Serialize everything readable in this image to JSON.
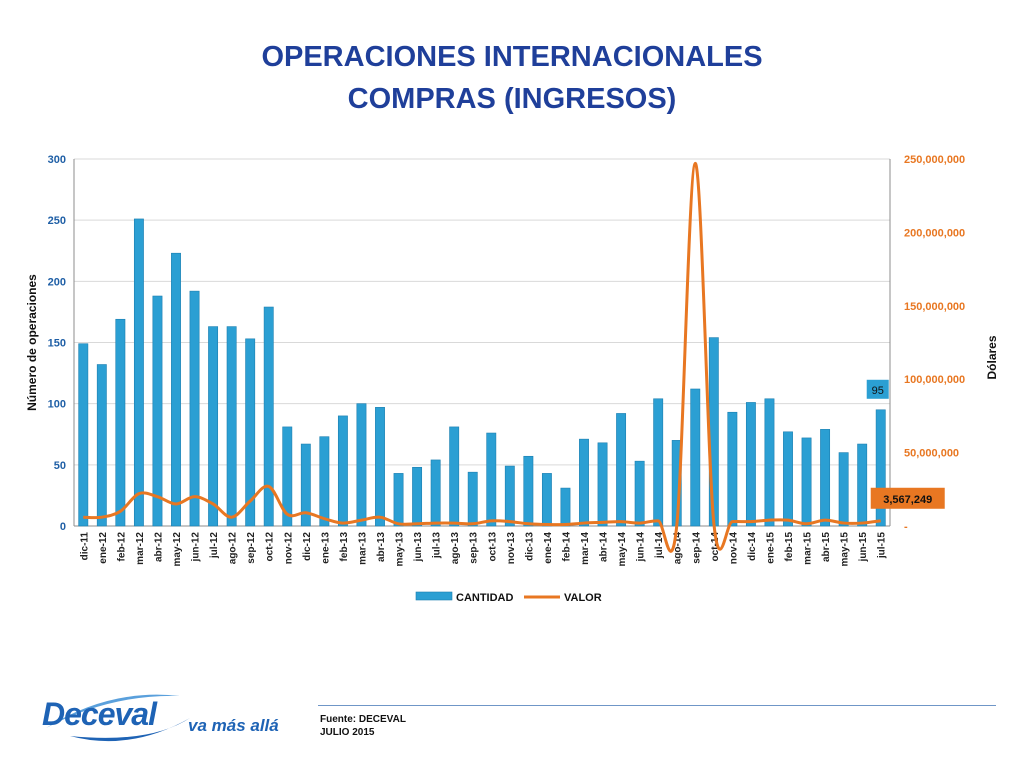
{
  "page": {
    "title_line1": "OPERACIONES INTERNACIONALES",
    "title_line2": "COMPRAS (INGRESOS)",
    "source_line1": "Fuente: DECEVAL",
    "source_line2": "JULIO 2015",
    "logo_brand": "Deceval",
    "logo_tagline": "va más allá"
  },
  "colors": {
    "title": "#1f3f9a",
    "bar": "#2b9fd3",
    "line": "#e87722",
    "left_axis": "#1f5fa6",
    "right_axis": "#e87722"
  },
  "chart_data": {
    "type": "bar",
    "categories": [
      "dic-11",
      "ene-12",
      "feb-12",
      "mar-12",
      "abr-12",
      "may-12",
      "jun-12",
      "jul-12",
      "ago-12",
      "sep-12",
      "oct-12",
      "nov-12",
      "dic-12",
      "ene-13",
      "feb-13",
      "mar-13",
      "abr-13",
      "may-13",
      "jun-13",
      "jul-13",
      "ago-13",
      "sep-13",
      "oct-13",
      "nov-13",
      "dic-13",
      "ene-14",
      "feb-14",
      "mar-14",
      "abr-14",
      "may-14",
      "jun-14",
      "jul-14",
      "ago-14",
      "sep-14",
      "oct-14",
      "nov-14",
      "dic-14",
      "ene-15",
      "feb-15",
      "mar-15",
      "abr-15",
      "may-15",
      "jun-15",
      "jul-15"
    ],
    "series": [
      {
        "name": "CANTIDAD",
        "type": "bar",
        "axis": "left",
        "values": [
          149,
          132,
          169,
          251,
          188,
          223,
          192,
          163,
          163,
          153,
          179,
          81,
          67,
          73,
          90,
          100,
          97,
          43,
          48,
          54,
          81,
          44,
          76,
          49,
          57,
          43,
          31,
          71,
          68,
          92,
          53,
          104,
          70,
          112,
          154,
          93,
          101,
          104,
          77,
          72,
          79,
          60,
          67,
          95
        ]
      },
      {
        "name": "VALOR",
        "type": "line",
        "axis": "right",
        "values": [
          6000000,
          6000000,
          10000000,
          22000000,
          20000000,
          15000000,
          20000000,
          15000000,
          6000000,
          17000000,
          27000000,
          8000000,
          9000000,
          5000000,
          2000000,
          4000000,
          6000000,
          1500000,
          1500000,
          2000000,
          2000000,
          1500000,
          3500000,
          3000000,
          1500000,
          1000000,
          1000000,
          2000000,
          2500000,
          3000000,
          2000000,
          3500000,
          0,
          247000000,
          2000000,
          3000000,
          3000000,
          4000000,
          4000000,
          1500000,
          4000000,
          2000000,
          2000000,
          3567249
        ]
      }
    ],
    "y_left": {
      "label": "Número de operaciones",
      "min": 0,
      "max": 300,
      "ticks": [
        "0",
        "50",
        "100",
        "150",
        "200",
        "250",
        "300"
      ]
    },
    "y_right": {
      "label": "Dólares",
      "min": 0,
      "max": 250000000,
      "ticks": [
        "-",
        "50,000,000",
        "100,000,000",
        "150,000,000",
        "200,000,000",
        "250,000,000"
      ]
    },
    "annotations": [
      {
        "series": "CANTIDAD",
        "category": "jul-15",
        "text": "95"
      },
      {
        "series": "VALOR",
        "category": "jul-15",
        "text": "3,567,249"
      }
    ],
    "grid": true,
    "legend_position": "bottom"
  }
}
